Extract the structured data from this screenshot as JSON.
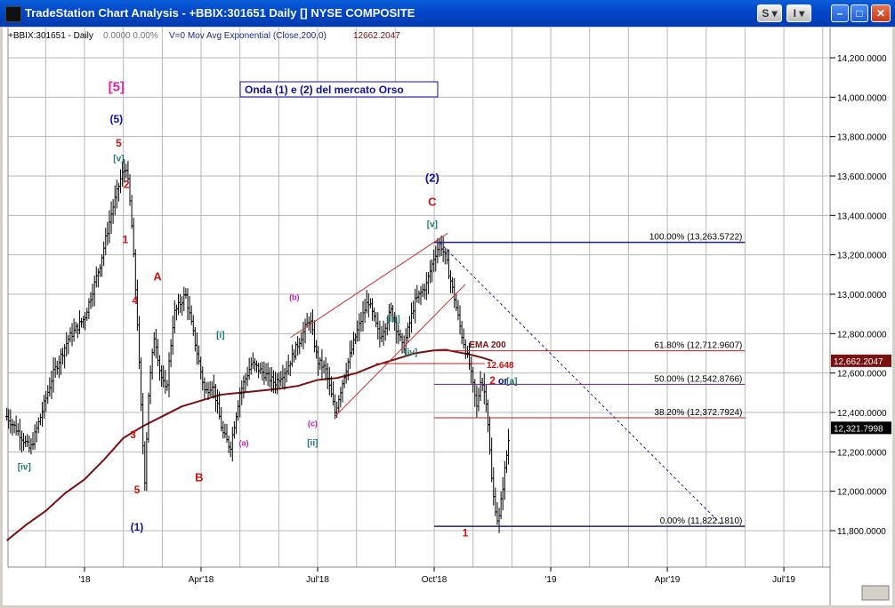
{
  "window": {
    "title": "TradeStation Chart Analysis - +BBIX:301651 Daily [] NYSE COMPOSITE",
    "btn_s": "S ▾",
    "btn_i": "I ▾",
    "btn_min": "–",
    "btn_max": "□",
    "btn_close": "✕",
    "icon": "app-icon"
  },
  "info_bar": {
    "symbol": "+BBIX:301651 - Daily",
    "change": "0.0000  0.00%",
    "study": "V=0  Mov Avg Exponential (Close,200,0)",
    "study_value": "12662.2047"
  },
  "annotation_title": "Onda (1) e (2) del mercato Orso",
  "chart_data": {
    "type": "candlestick",
    "series": [
      {
        "name": "+BBIX:301651 - Daily",
        "type": "price"
      },
      {
        "name": "EMA 200",
        "type": "line",
        "color": "#7a1010"
      }
    ],
    "ylim": [
      11650,
      14350
    ],
    "y_ticks": [
      "14,200.0000",
      "14,000.0000",
      "13,800.0000",
      "13,600.0000",
      "13,400.0000",
      "13,200.0000",
      "13,000.0000",
      "12,800.0000",
      "12,600.0000",
      "12,400.0000",
      "12,200.0000",
      "12,000.0000",
      "11,800.0000"
    ],
    "y_tick_values": [
      14200,
      14000,
      13800,
      13600,
      13400,
      13200,
      13000,
      12800,
      12600,
      12400,
      12200,
      12000,
      11800
    ],
    "x_ticks": [
      "'18",
      "Apr'18",
      "Jul'18",
      "Oct'18",
      "'19",
      "Apr'19",
      "Jul'19"
    ],
    "x_tick_months": [
      0,
      3,
      6,
      9,
      12,
      15,
      18
    ],
    "last_price_labels": [
      {
        "text": "12,662.2047",
        "value": 12662.2047,
        "bg": "#7a1010"
      },
      {
        "text": "12,321.7998",
        "value": 12321.7998,
        "bg": "#000000"
      }
    ],
    "fibonacci": [
      {
        "label": "100.00% (13,263.5722)",
        "value": 13263.5722,
        "color": "#1a237e"
      },
      {
        "label": "61.80% (12,712.9607)",
        "value": 12712.9607,
        "color": "#b22222"
      },
      {
        "label": "50.00% (12,542.8766)",
        "value": 12542.8766,
        "color": "#6a1b9a"
      },
      {
        "label": "38.20% (12,372.7924)",
        "value": 12372.7924,
        "color": "#b22222"
      },
      {
        "label": "0.00% (11,822.1810)",
        "value": 11822.181,
        "color": "#1a237e"
      }
    ],
    "ema_label": "EMA 200",
    "level_label": "12.648",
    "level_value": 12648,
    "wave_labels": [
      {
        "text": "[5]",
        "color": "#e020a0"
      },
      {
        "text": "(5)",
        "color": "#1010a0"
      },
      {
        "text": "5",
        "color": "#d01010"
      },
      {
        "text": "[v]",
        "color": "#1a7a6a"
      },
      {
        "text": "2",
        "color": "#d01010"
      },
      {
        "text": "1",
        "color": "#d01010"
      },
      {
        "text": "4",
        "color": "#d01010"
      },
      {
        "text": "3",
        "color": "#d01010"
      },
      {
        "text": "5",
        "color": "#d01010"
      },
      {
        "text": "(1)",
        "color": "#1010a0"
      },
      {
        "text": "[iv]",
        "color": "#1a7a6a"
      },
      {
        "text": "A",
        "color": "#d01010"
      },
      {
        "text": "B",
        "color": "#d01010"
      },
      {
        "text": "[i]",
        "color": "#1a7a6a"
      },
      {
        "text": "(a)",
        "color": "#c020c0"
      },
      {
        "text": "(b)",
        "color": "#c020c0"
      },
      {
        "text": "(c)",
        "color": "#c020c0"
      },
      {
        "text": "[ii]",
        "color": "#1a7a6a"
      },
      {
        "text": "[iii]",
        "color": "#1a7a6a"
      },
      {
        "text": "[iv]",
        "color": "#1a7a6a"
      },
      {
        "text": "[v]",
        "color": "#1a7a6a"
      },
      {
        "text": "C",
        "color": "#d01010"
      },
      {
        "text": "(2)",
        "color": "#1010a0"
      },
      {
        "text": "1",
        "color": "#d01010"
      },
      {
        "text": "2",
        "color": "#d01010"
      },
      {
        "text": "or",
        "color": "#1010a0"
      },
      {
        "text": "[a]",
        "color": "#1a7a6a"
      }
    ]
  }
}
